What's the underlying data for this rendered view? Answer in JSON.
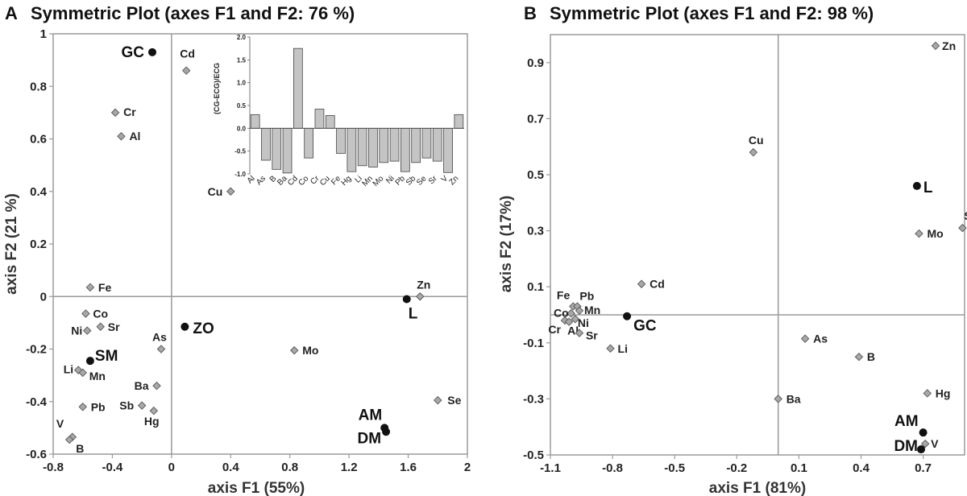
{
  "chart_data": [
    {
      "type": "scatter",
      "panel_label": "A",
      "title": "Symmetric Plot (axes F1 and F2: 76 %)",
      "xlabel": "axis F1 (55%)",
      "ylabel": "axis F2 (21 %)",
      "xlim": [
        -0.8,
        2.0
      ],
      "ylim": [
        -0.6,
        1.0
      ],
      "xticks": [
        "-0.8",
        "-0.4",
        "0",
        "0.4",
        "0.8",
        "1.2",
        "1.6",
        "2"
      ],
      "yticks": [
        "-0.6",
        "-0.4",
        "-0.2",
        "0",
        "0.2",
        "0.4",
        "0.6",
        "0.8",
        "1"
      ],
      "variables": [
        {
          "label": "Cd",
          "x": 0.1,
          "y": 0.86
        },
        {
          "label": "Cr",
          "x": -0.38,
          "y": 0.7
        },
        {
          "label": "Al",
          "x": -0.34,
          "y": 0.61
        },
        {
          "label": "Cu",
          "x": 0.4,
          "y": 0.4
        },
        {
          "label": "Fe",
          "x": -0.55,
          "y": 0.035
        },
        {
          "label": "Co",
          "x": -0.58,
          "y": -0.065
        },
        {
          "label": "Sr",
          "x": -0.48,
          "y": -0.115
        },
        {
          "label": "Ni",
          "x": -0.57,
          "y": -0.13
        },
        {
          "label": "As",
          "x": -0.07,
          "y": -0.2
        },
        {
          "label": "Li",
          "x": -0.63,
          "y": -0.28
        },
        {
          "label": "Mn",
          "x": -0.6,
          "y": -0.29
        },
        {
          "label": "Ba",
          "x": -0.1,
          "y": -0.34
        },
        {
          "label": "Pb",
          "x": -0.6,
          "y": -0.42
        },
        {
          "label": "Sb",
          "x": -0.2,
          "y": -0.415
        },
        {
          "label": "Hg",
          "x": -0.12,
          "y": -0.435
        },
        {
          "label": "V",
          "x": -0.67,
          "y": -0.535
        },
        {
          "label": "B",
          "x": -0.69,
          "y": -0.545
        },
        {
          "label": "Mo",
          "x": 0.83,
          "y": -0.205
        },
        {
          "label": "Zn",
          "x": 1.68,
          "y": 0.0
        },
        {
          "label": "Se",
          "x": 1.8,
          "y": -0.395
        }
      ],
      "observations": [
        {
          "label": "GC",
          "x": -0.13,
          "y": 0.93
        },
        {
          "label": "ZO",
          "x": 0.09,
          "y": -0.115
        },
        {
          "label": "SM",
          "x": -0.55,
          "y": -0.245
        },
        {
          "label": "L",
          "x": 1.59,
          "y": -0.01
        },
        {
          "label": "AM",
          "x": 1.44,
          "y": -0.5
        },
        {
          "label": "DM",
          "x": 1.45,
          "y": -0.515
        }
      ],
      "inset": {
        "type": "bar",
        "ylabel": "(CG-ECG)/ECG",
        "ylim": [
          -1.0,
          2.0
        ],
        "yticks": [
          "-1.0",
          "-0.5",
          "0.0",
          "0.5",
          "1.0",
          "1.5",
          "2.0"
        ],
        "categories": [
          "Al",
          "As",
          "B",
          "Ba",
          "Cd",
          "Co",
          "Cr",
          "Cu",
          "Fe",
          "Hg",
          "Li",
          "Mn",
          "Mo",
          "Ni",
          "Pb",
          "Sb",
          "Se",
          "Sr",
          "V",
          "Zn"
        ],
        "values": [
          0.3,
          -0.7,
          -0.9,
          -0.98,
          1.75,
          -0.65,
          0.42,
          0.28,
          -0.55,
          -0.95,
          -0.82,
          -0.85,
          -0.75,
          -0.72,
          -0.95,
          -0.75,
          -0.65,
          -0.72,
          -0.97,
          0.3
        ]
      }
    },
    {
      "type": "scatter",
      "panel_label": "B",
      "title": "Symmetric Plot (axes F1 and F2: 98 %)",
      "xlabel": "axis F1 (81%)",
      "ylabel": "axis F2 (17%)",
      "xlim": [
        -1.1,
        0.9
      ],
      "ylim": [
        -0.5,
        1.0
      ],
      "xticks": [
        "-1.1",
        "-0.8",
        "-0.5",
        "-0.2",
        "0.1",
        "0.4",
        "0.7"
      ],
      "yticks": [
        "-0.5",
        "-0.3",
        "-0.1",
        "0.1",
        "0.3",
        "0.5",
        "0.7",
        "0.9"
      ],
      "variables": [
        {
          "label": "Zn",
          "x": 0.76,
          "y": 0.96
        },
        {
          "label": "Cu",
          "x": -0.12,
          "y": 0.58
        },
        {
          "label": "Se",
          "x": 0.89,
          "y": 0.31
        },
        {
          "label": "Mo",
          "x": 0.68,
          "y": 0.29
        },
        {
          "label": "Cd",
          "x": -0.66,
          "y": 0.11
        },
        {
          "label": "Fe",
          "x": -0.99,
          "y": 0.03
        },
        {
          "label": "Pb",
          "x": -0.97,
          "y": 0.03
        },
        {
          "label": "Mn",
          "x": -0.96,
          "y": 0.015
        },
        {
          "label": "Co",
          "x": -1.0,
          "y": 0.005
        },
        {
          "label": "Ni",
          "x": -0.98,
          "y": -0.015
        },
        {
          "label": "Cr",
          "x": -1.03,
          "y": -0.02
        },
        {
          "label": "Al",
          "x": -1.01,
          "y": -0.025
        },
        {
          "label": "Sr",
          "x": -0.96,
          "y": -0.065
        },
        {
          "label": "Li",
          "x": -0.81,
          "y": -0.12
        },
        {
          "label": "As",
          "x": 0.13,
          "y": -0.085
        },
        {
          "label": "B",
          "x": 0.39,
          "y": -0.15
        },
        {
          "label": "Ba",
          "x": 0.0,
          "y": -0.3
        },
        {
          "label": "Hg",
          "x": 0.72,
          "y": -0.28
        },
        {
          "label": "V",
          "x": 0.71,
          "y": -0.46
        }
      ],
      "observations": [
        {
          "label": "L",
          "x": 0.67,
          "y": 0.46
        },
        {
          "label": "GC",
          "x": -0.73,
          "y": -0.005
        },
        {
          "label": "AM",
          "x": 0.7,
          "y": -0.42
        },
        {
          "label": "DM",
          "x": 0.69,
          "y": -0.48
        }
      ]
    }
  ]
}
